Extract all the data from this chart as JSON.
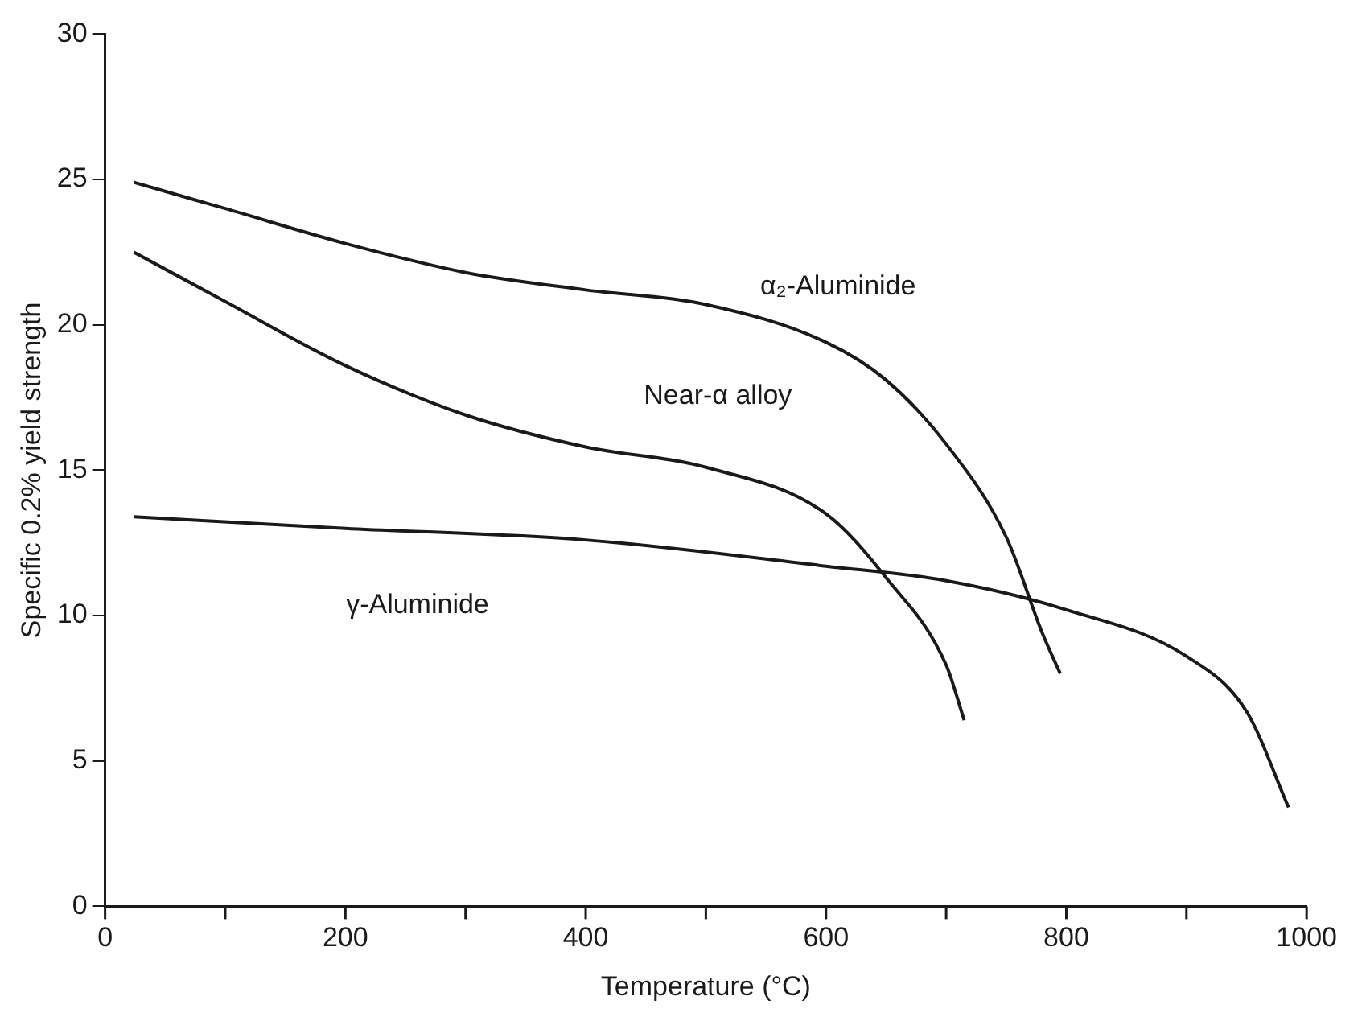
{
  "chart_data": {
    "type": "line",
    "xlabel": "Temperature (°C)",
    "ylabel": "Specific 0.2% yield strength",
    "xlim": [
      0,
      1000
    ],
    "ylim": [
      0,
      30
    ],
    "xticks": [
      0,
      {
        "value": 100,
        "label": null
      },
      200,
      {
        "value": 300,
        "label": null
      },
      400,
      {
        "value": 500,
        "label": null
      },
      600,
      {
        "value": 700,
        "label": null
      },
      800,
      {
        "value": 900,
        "label": null
      },
      1000
    ],
    "yticks": [
      0,
      5,
      10,
      15,
      20,
      25,
      30
    ],
    "grid": false,
    "legend": false,
    "marker": "none",
    "line_style": "solid",
    "series": [
      {
        "name": "α₂-Aluminide",
        "color": "#1a1a1a",
        "x": [
          24,
          100,
          200,
          300,
          400,
          500,
          600,
          650,
          700,
          750,
          780,
          795
        ],
        "values": [
          24.9,
          24,
          22.8,
          21.8,
          21.2,
          20.7,
          19.4,
          18.1,
          15.9,
          12.7,
          9.4,
          8.0
        ]
      },
      {
        "name": "Near-α alloy",
        "color": "#1a1a1a",
        "x": [
          24,
          100,
          200,
          300,
          400,
          500,
          600,
          650,
          700,
          715
        ],
        "values": [
          22.5,
          20.8,
          18.6,
          16.9,
          15.8,
          15.1,
          13.5,
          11.3,
          8.3,
          6.4
        ]
      },
      {
        "name": "γ-Aluminide",
        "color": "#1a1a1a",
        "x": [
          24,
          200,
          400,
          600,
          700,
          800,
          900,
          950,
          985
        ],
        "values": [
          13.4,
          13.0,
          12.6,
          11.7,
          11.2,
          10.2,
          8.6,
          6.7,
          3.4
        ]
      }
    ]
  }
}
